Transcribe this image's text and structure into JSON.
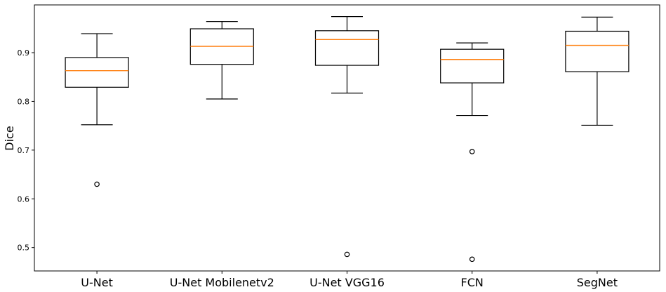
{
  "chart_data": {
    "type": "box",
    "title": "",
    "xlabel": "",
    "ylabel": "Dice",
    "ylim": [
      0.452,
      0.998
    ],
    "yticks": [
      0.5,
      0.6,
      0.7,
      0.8,
      0.9
    ],
    "ytick_labels": [
      "0.5",
      "0.6",
      "0.7",
      "0.8",
      "0.9"
    ],
    "grid": false,
    "median_color": "#ff7f0e",
    "box_color": "#000000",
    "categories": [
      "U-Net",
      "U-Net Mobilenetv2",
      "U-Net VGG16",
      "FCN",
      "SegNet"
    ],
    "boxes": [
      {
        "name": "U-Net",
        "whislo": 0.752,
        "q1": 0.829,
        "med": 0.863,
        "q3": 0.89,
        "whishi": 0.939,
        "fliers": [
          0.63
        ]
      },
      {
        "name": "U-Net Mobilenetv2",
        "whislo": 0.805,
        "q1": 0.876,
        "med": 0.913,
        "q3": 0.949,
        "whishi": 0.964,
        "fliers": []
      },
      {
        "name": "U-Net VGG16",
        "whislo": 0.817,
        "q1": 0.874,
        "med": 0.927,
        "q3": 0.945,
        "whishi": 0.974,
        "fliers": [
          0.486
        ]
      },
      {
        "name": "FCN",
        "whislo": 0.771,
        "q1": 0.838,
        "med": 0.886,
        "q3": 0.907,
        "whishi": 0.92,
        "fliers": [
          0.697,
          0.476
        ]
      },
      {
        "name": "SegNet",
        "whislo": 0.751,
        "q1": 0.861,
        "med": 0.915,
        "q3": 0.944,
        "whishi": 0.973,
        "fliers": []
      }
    ]
  }
}
